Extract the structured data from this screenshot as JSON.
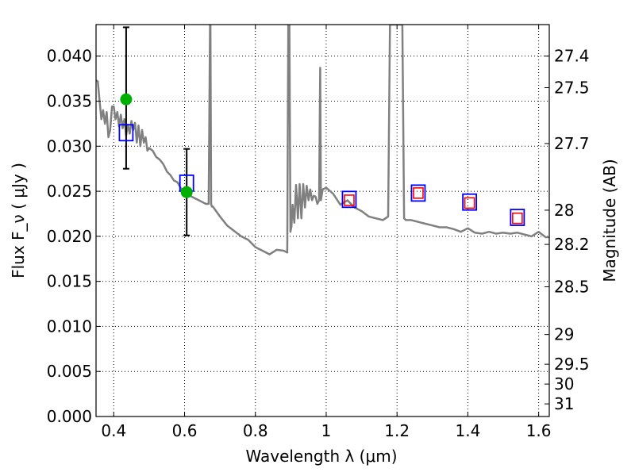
{
  "chart_data": {
    "type": "line",
    "title": "",
    "xlabel": "Wavelength  λ (μm)",
    "ylabel": "Flux  F_ν  ( μJy )",
    "ylabel2": "Magnitude (AB)",
    "xlim": [
      0.35,
      1.63
    ],
    "ylim": [
      0,
      0.0435
    ],
    "grid": true,
    "colors": {
      "model": "#808080",
      "photometry_points": "#00b000",
      "errorbars": "#000000",
      "model_bandpass_boxes": "#0000ff",
      "observed_boxes": "#ff0000"
    },
    "x_ticks": [
      {
        "value": 0.4,
        "label": "0.4"
      },
      {
        "value": 0.6,
        "label": "0.6"
      },
      {
        "value": 0.8,
        "label": "0.8"
      },
      {
        "value": 1.0,
        "label": "1"
      },
      {
        "value": 1.2,
        "label": "1.2"
      },
      {
        "value": 1.4,
        "label": "1.4"
      },
      {
        "value": 1.6,
        "label": "1.6"
      }
    ],
    "y_ticks": [
      {
        "value": 0.0,
        "label": "0.000"
      },
      {
        "value": 0.005,
        "label": "0.005"
      },
      {
        "value": 0.01,
        "label": "0.010"
      },
      {
        "value": 0.015,
        "label": "0.015"
      },
      {
        "value": 0.02,
        "label": "0.020"
      },
      {
        "value": 0.025,
        "label": "0.025"
      },
      {
        "value": 0.03,
        "label": "0.030"
      },
      {
        "value": 0.035,
        "label": "0.035"
      },
      {
        "value": 0.04,
        "label": "0.040"
      }
    ],
    "right_ticks": [
      {
        "flux": 0.04,
        "label": "27.4"
      },
      {
        "flux": 0.0365,
        "label": "27.5"
      },
      {
        "flux": 0.0303,
        "label": "27.7"
      },
      {
        "flux": 0.0229,
        "label": "28"
      },
      {
        "flux": 0.0191,
        "label": "28.2"
      },
      {
        "flux": 0.0144,
        "label": "28.5"
      },
      {
        "flux": 0.0091,
        "label": "29"
      },
      {
        "flux": 0.0058,
        "label": "29.5"
      },
      {
        "flux": 0.0036,
        "label": "30"
      },
      {
        "flux": 0.0014,
        "label": "31"
      }
    ],
    "model_spectrum": {
      "x": [
        0.35,
        0.355,
        0.36,
        0.365,
        0.37,
        0.375,
        0.38,
        0.385,
        0.39,
        0.395,
        0.4,
        0.405,
        0.41,
        0.415,
        0.42,
        0.425,
        0.43,
        0.435,
        0.44,
        0.445,
        0.45,
        0.455,
        0.46,
        0.465,
        0.47,
        0.475,
        0.48,
        0.485,
        0.49,
        0.495,
        0.5,
        0.51,
        0.52,
        0.53,
        0.54,
        0.55,
        0.56,
        0.57,
        0.58,
        0.59,
        0.6,
        0.62,
        0.64,
        0.66,
        0.668,
        0.672,
        0.673,
        0.675,
        0.677,
        0.68,
        0.7,
        0.72,
        0.74,
        0.76,
        0.78,
        0.8,
        0.82,
        0.84,
        0.86,
        0.88,
        0.89,
        0.893,
        0.896,
        0.899,
        0.902,
        0.905,
        0.91,
        0.915,
        0.92,
        0.925,
        0.93,
        0.935,
        0.94,
        0.945,
        0.95,
        0.955,
        0.96,
        0.965,
        0.97,
        0.975,
        0.98,
        0.983,
        0.985,
        0.987,
        0.99,
        1.0,
        1.02,
        1.04,
        1.06,
        1.08,
        1.1,
        1.12,
        1.14,
        1.16,
        1.175,
        1.18,
        1.185,
        1.215,
        1.22,
        1.225,
        1.24,
        1.26,
        1.28,
        1.3,
        1.32,
        1.34,
        1.36,
        1.38,
        1.4,
        1.42,
        1.44,
        1.46,
        1.48,
        1.5,
        1.52,
        1.54,
        1.56,
        1.58,
        1.6,
        1.62,
        1.63
      ],
      "y": [
        0.0373,
        0.0372,
        0.035,
        0.033,
        0.034,
        0.0325,
        0.0338,
        0.031,
        0.0318,
        0.0344,
        0.0344,
        0.033,
        0.0338,
        0.0322,
        0.0335,
        0.032,
        0.033,
        0.0312,
        0.0324,
        0.0314,
        0.0328,
        0.0318,
        0.0326,
        0.0304,
        0.0323,
        0.03,
        0.0318,
        0.0304,
        0.031,
        0.0295,
        0.0298,
        0.0295,
        0.0288,
        0.0285,
        0.028,
        0.0272,
        0.0268,
        0.0262,
        0.026,
        0.0253,
        0.025,
        0.0244,
        0.024,
        0.0236,
        0.0236,
        0.0435,
        0.0435,
        0.0236,
        0.0233,
        0.0233,
        0.0222,
        0.0212,
        0.0206,
        0.02,
        0.0196,
        0.0188,
        0.0184,
        0.018,
        0.0185,
        0.0184,
        0.0182,
        0.0435,
        0.0435,
        0.0205,
        0.0211,
        0.0235,
        0.0215,
        0.0257,
        0.022,
        0.0258,
        0.022,
        0.0258,
        0.0232,
        0.0256,
        0.024,
        0.0252,
        0.024,
        0.0245,
        0.0244,
        0.0236,
        0.024,
        0.0387,
        0.024,
        0.0245,
        0.0252,
        0.0254,
        0.0247,
        0.0235,
        0.024,
        0.0232,
        0.0228,
        0.0222,
        0.022,
        0.0218,
        0.0222,
        0.0435,
        0.0435,
        0.0435,
        0.022,
        0.0218,
        0.0218,
        0.0216,
        0.0214,
        0.0212,
        0.021,
        0.021,
        0.0208,
        0.0205,
        0.0209,
        0.0204,
        0.0203,
        0.0205,
        0.0203,
        0.0204,
        0.0203,
        0.0204,
        0.0202,
        0.02,
        0.0205,
        0.0199,
        0.0199
      ]
    },
    "photometry": [
      {
        "x": 0.435,
        "y": 0.0352,
        "err_low": 0.0275,
        "err_high": 0.0432
      },
      {
        "x": 0.606,
        "y": 0.0249,
        "err_low": 0.0201,
        "err_high": 0.0297
      }
    ],
    "model_bandpass_fluxes": [
      {
        "x": 0.435,
        "y": 0.0315
      },
      {
        "x": 0.606,
        "y": 0.0259
      },
      {
        "x": 1.065,
        "y": 0.0241
      },
      {
        "x": 1.26,
        "y": 0.0248
      },
      {
        "x": 1.405,
        "y": 0.0238
      },
      {
        "x": 1.54,
        "y": 0.0221
      }
    ],
    "observed_nir": [
      {
        "x": 1.065,
        "y": 0.024
      },
      {
        "x": 1.26,
        "y": 0.0248
      },
      {
        "x": 1.405,
        "y": 0.0237
      },
      {
        "x": 1.54,
        "y": 0.022
      }
    ]
  }
}
